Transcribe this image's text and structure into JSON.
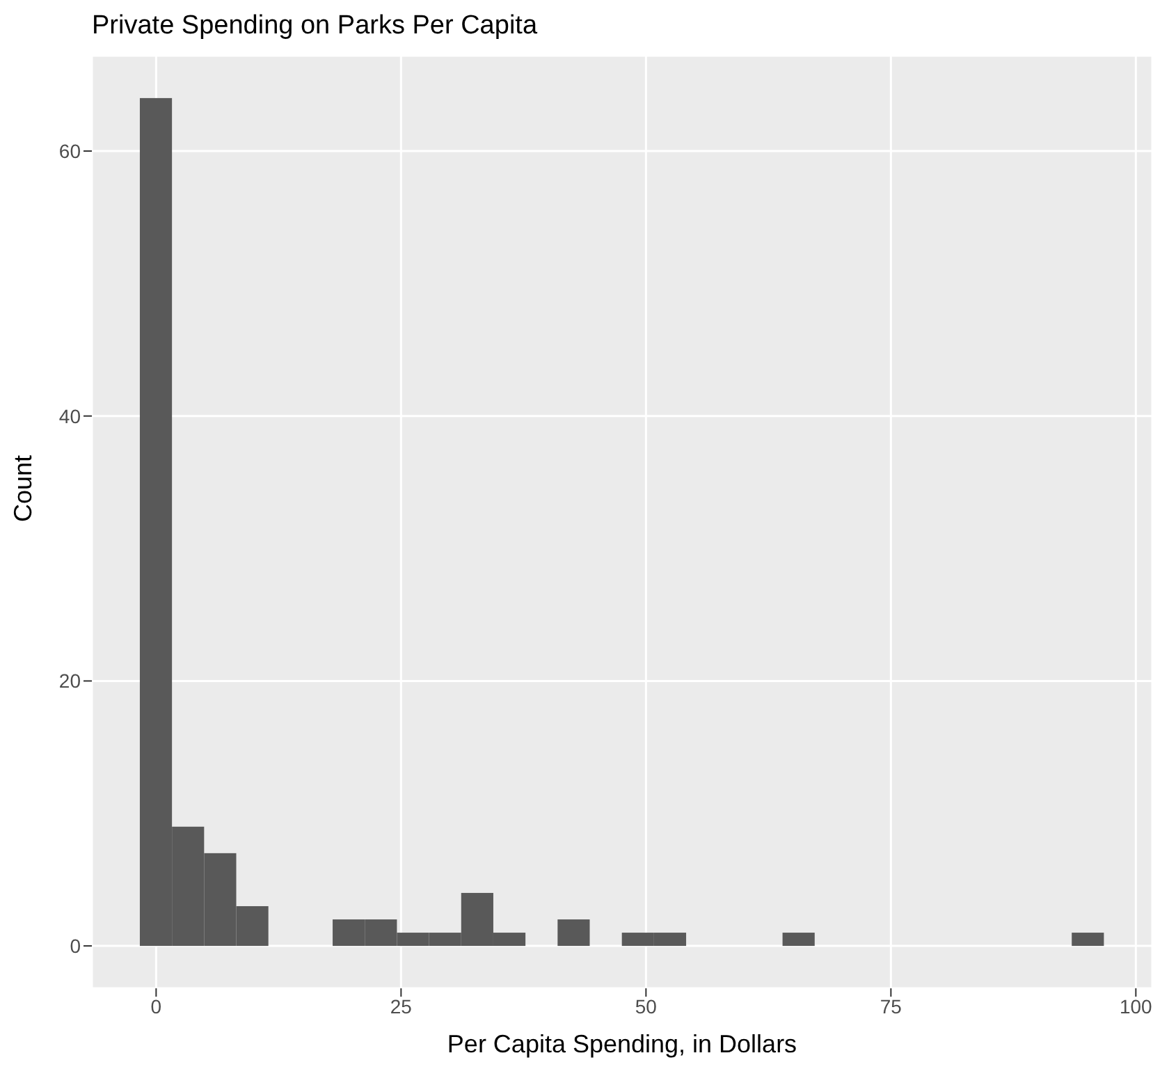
{
  "chart_data": {
    "type": "histogram",
    "title": "Private Spending on Parks Per Capita",
    "xlabel": "Per Capita Spending, in Dollars",
    "ylabel": "Count",
    "bins": [
      -1.64,
      1.64,
      4.92,
      8.2,
      11.48,
      14.76,
      18.04,
      21.32,
      24.6,
      27.88,
      31.16,
      34.44,
      37.72,
      41.0,
      44.28,
      47.56,
      50.84,
      54.12,
      57.4,
      60.68,
      63.96,
      67.24,
      70.52,
      73.8,
      77.08,
      80.36,
      83.64,
      86.92,
      90.2,
      93.48,
      96.76
    ],
    "values": [
      64,
      9,
      7,
      3,
      0,
      0,
      2,
      2,
      1,
      1,
      4,
      1,
      0,
      2,
      0,
      1,
      1,
      0,
      0,
      0,
      1,
      0,
      0,
      0,
      0,
      0,
      0,
      0,
      0,
      1
    ],
    "color": "#595959",
    "xlim": [
      -6.56,
      101.68
    ],
    "ylim": [
      -3.2,
      67.2
    ],
    "xticks": [
      0,
      25,
      50,
      75,
      100
    ],
    "yticks": [
      0,
      20,
      40,
      60
    ],
    "grid": true
  }
}
